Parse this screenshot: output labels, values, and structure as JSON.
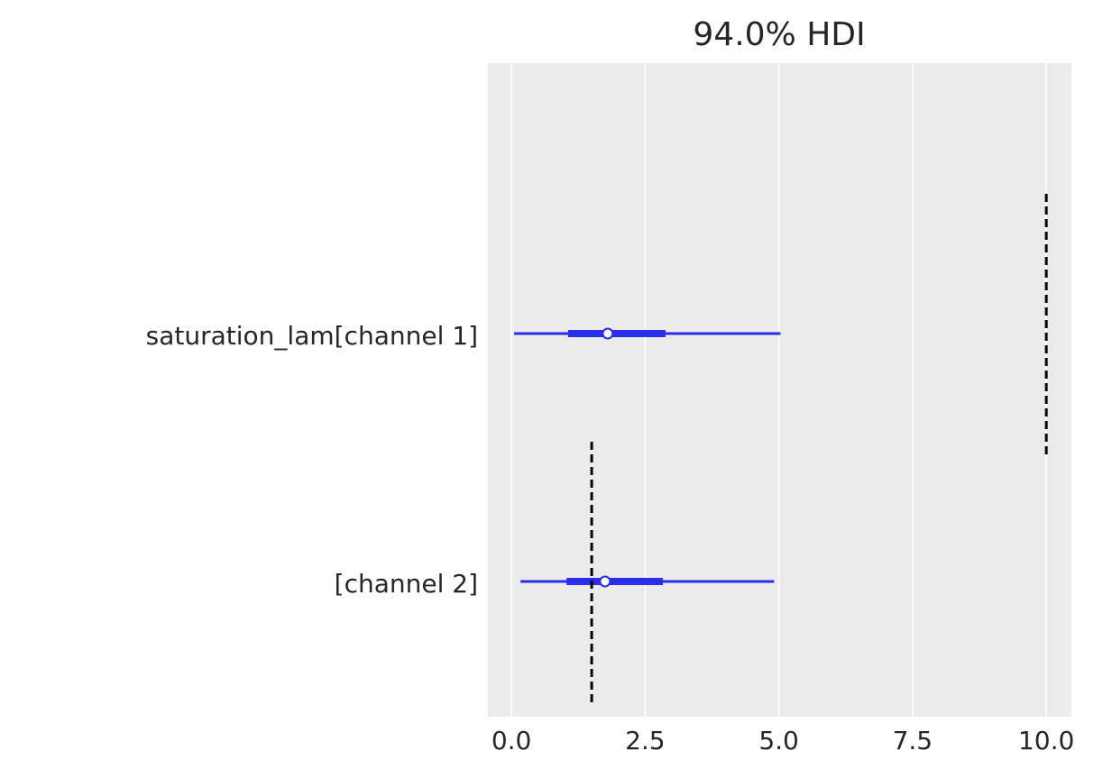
{
  "chart_data": {
    "type": "forest",
    "title": "94.0% HDI",
    "categories": [
      "saturation_lam[channel 1]",
      "[channel 2]"
    ],
    "rows": [
      {
        "point": 1.8,
        "hdi94": [
          0.05,
          5.03
        ],
        "hdi50": [
          1.06,
          2.88
        ],
        "reference": 10.0
      },
      {
        "point": 1.75,
        "hdi94": [
          0.17,
          4.91
        ],
        "hdi50": [
          1.03,
          2.83
        ],
        "reference": 1.5
      }
    ],
    "color": "#2a2eec",
    "reference_color": "#000000",
    "xlim": [
      -0.44,
      10.47
    ],
    "xticks": [
      {
        "value": 0,
        "label": "0.0"
      },
      2.5,
      {
        "value": 5,
        "label": "5.0"
      },
      7.5,
      {
        "value": 10,
        "label": "10.0"
      }
    ],
    "grid": true
  }
}
